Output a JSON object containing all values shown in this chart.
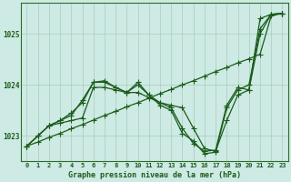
{
  "background_color": "#ceeae4",
  "grid_color": "#aaccbb",
  "line_color": "#1a5c1a",
  "title": "Graphe pression niveau de la mer (hPa)",
  "ylim": [
    1022.5,
    1025.6
  ],
  "xlim": [
    -0.5,
    23.5
  ],
  "yticks": [
    1023,
    1024,
    1025
  ],
  "xticks": [
    0,
    1,
    2,
    3,
    4,
    5,
    6,
    7,
    8,
    9,
    10,
    11,
    12,
    13,
    14,
    15,
    16,
    17,
    18,
    19,
    20,
    21,
    22,
    23
  ],
  "series": [
    {
      "x": [
        0,
        1,
        2,
        3,
        4,
        5,
        6,
        7,
        8,
        9,
        10,
        11,
        12,
        13,
        14,
        15,
        16,
        17,
        18,
        19,
        20,
        21,
        22,
        23
      ],
      "y": [
        1022.8,
        1022.88,
        1022.97,
        1023.05,
        1023.14,
        1023.22,
        1023.31,
        1023.4,
        1023.48,
        1023.57,
        1023.65,
        1023.74,
        1023.83,
        1023.91,
        1024.0,
        1024.08,
        1024.17,
        1024.26,
        1024.34,
        1024.43,
        1024.51,
        1024.6,
        1025.35,
        1025.4
      ]
    },
    {
      "x": [
        0,
        1,
        2,
        3,
        4,
        5,
        6,
        7,
        8,
        9,
        10,
        11,
        12,
        13,
        14,
        15,
        16,
        17,
        18,
        19,
        20,
        21,
        22,
        23
      ],
      "y": [
        1022.8,
        1023.0,
        1023.2,
        1023.25,
        1023.3,
        1023.35,
        1023.95,
        1023.95,
        1023.9,
        1023.85,
        1023.85,
        1023.75,
        1023.65,
        1023.6,
        1023.55,
        1023.15,
        1022.75,
        1022.7,
        1023.3,
        1023.8,
        1023.9,
        1025.3,
        1025.38,
        1025.4
      ]
    },
    {
      "x": [
        0,
        1,
        2,
        3,
        4,
        5,
        6,
        7,
        8,
        9,
        10,
        11,
        12,
        13,
        14,
        15,
        16,
        17,
        18,
        19,
        20,
        21,
        22,
        23
      ],
      "y": [
        1022.8,
        1023.0,
        1023.2,
        1023.3,
        1023.45,
        1023.65,
        1024.05,
        1024.05,
        1023.95,
        1023.85,
        1024.0,
        1023.8,
        1023.65,
        1023.55,
        1023.15,
        1022.85,
        1022.7,
        1022.72,
        1023.6,
        1023.95,
        1023.9,
        1025.0,
        1025.38,
        1025.4
      ]
    },
    {
      "x": [
        0,
        1,
        2,
        3,
        4,
        5,
        6,
        7,
        8,
        9,
        10,
        11,
        12,
        13,
        14,
        15,
        16,
        17,
        18,
        19,
        20,
        21,
        22,
        23
      ],
      "y": [
        1022.8,
        1023.0,
        1023.2,
        1023.3,
        1023.4,
        1023.7,
        1024.05,
        1024.08,
        1023.95,
        1023.85,
        1024.05,
        1023.8,
        1023.6,
        1023.5,
        1023.05,
        1022.9,
        1022.65,
        1022.68,
        1023.55,
        1023.9,
        1024.0,
        1025.1,
        1025.38,
        1025.4
      ]
    }
  ]
}
